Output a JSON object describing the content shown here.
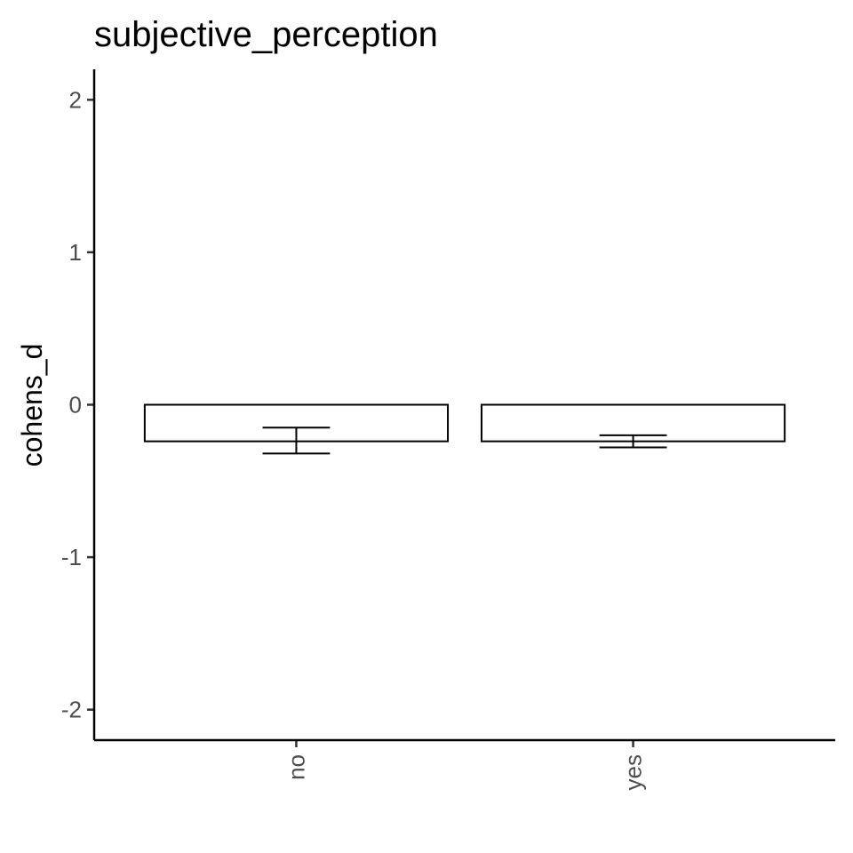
{
  "chart_data": {
    "type": "bar",
    "title": "subjective_perception",
    "xlabel": "",
    "ylabel": "cohens_d",
    "categories": [
      "no",
      "yes"
    ],
    "values": [
      -0.24,
      -0.24
    ],
    "error_low": [
      -0.32,
      -0.28
    ],
    "error_high": [
      -0.15,
      -0.2
    ],
    "ylim": [
      -2.2,
      2.2
    ],
    "yticks": [
      -2,
      -1,
      0,
      1,
      2
    ],
    "ytick_labels": [
      "-2",
      "-1",
      "0",
      "1",
      "2"
    ],
    "grid": false,
    "bar_fill": "#ffffff",
    "bar_stroke": "#000000"
  }
}
